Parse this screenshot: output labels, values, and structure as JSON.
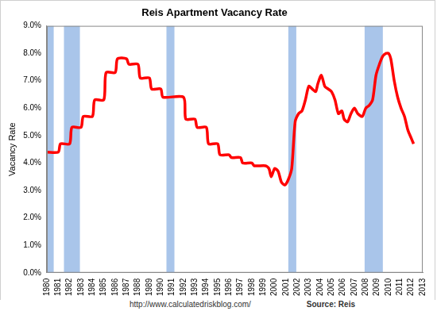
{
  "chart_data": {
    "type": "line",
    "title": "Reis Apartment Vacancy Rate",
    "y_label": "Vacancy Rate",
    "x": [
      1980,
      1981,
      1981.2,
      1982,
      1982.2,
      1983,
      1983.2,
      1984,
      1984.2,
      1985,
      1985.2,
      1986,
      1986.2,
      1987,
      1987.2,
      1988,
      1988.2,
      1989,
      1989.2,
      1990,
      1990.2,
      1992,
      1992.2,
      1993,
      1993.2,
      1994,
      1994.2,
      1995,
      1995.2,
      1996,
      1996.2,
      1997,
      1997.2,
      1998,
      1998.2,
      1999.2,
      1999.5,
      1999.7,
      2000.0,
      2000.3,
      2000.6,
      2000.9,
      2001.2,
      2001.5,
      2001.8,
      2002.1,
      2002.4,
      2002.7,
      2003.0,
      2003.3,
      2003.6,
      2003.8,
      2004.1,
      2004.4,
      2004.7,
      2005.0,
      2005.3,
      2005.6,
      2005.9,
      2006.1,
      2006.4,
      2006.7,
      2007.0,
      2007.3,
      2007.7,
      2008.0,
      2008.3,
      2008.6,
      2008.9,
      2009.2,
      2009.5,
      2009.8,
      2010.0,
      2010.2,
      2010.5,
      2010.8,
      2011.1,
      2011.4,
      2011.7,
      2012.0,
      2012.2
    ],
    "values": [
      4.4,
      4.4,
      4.7,
      4.7,
      5.3,
      5.3,
      5.7,
      5.7,
      6.3,
      6.3,
      7.3,
      7.3,
      7.8,
      7.8,
      7.6,
      7.6,
      7.1,
      7.1,
      6.7,
      6.7,
      6.4,
      6.4,
      5.6,
      5.6,
      5.3,
      5.3,
      4.7,
      4.7,
      4.3,
      4.3,
      4.2,
      4.2,
      4.0,
      4.0,
      3.9,
      3.9,
      3.8,
      3.5,
      3.8,
      3.7,
      3.3,
      3.2,
      3.4,
      3.8,
      5.5,
      5.8,
      5.9,
      6.3,
      6.8,
      6.7,
      6.6,
      6.9,
      7.2,
      6.8,
      6.7,
      6.6,
      6.3,
      5.8,
      5.9,
      5.6,
      5.5,
      5.8,
      6.0,
      5.8,
      5.7,
      6.0,
      6.1,
      6.3,
      7.2,
      7.6,
      7.9,
      8.0,
      8.0,
      7.8,
      7.0,
      6.4,
      6.0,
      5.7,
      5.2,
      4.9,
      4.7
    ],
    "color": "#ff0000",
    "recessions": [
      [
        1980.0,
        1980.6
      ],
      [
        1981.5,
        1982.9
      ],
      [
        1990.5,
        1991.2
      ],
      [
        2001.2,
        2001.9
      ],
      [
        2007.9,
        2009.5
      ]
    ],
    "recession_color": "#a9c5ea",
    "xlim": [
      1980,
      2013
    ],
    "xticks": [
      1980,
      1981,
      1982,
      1983,
      1984,
      1985,
      1986,
      1987,
      1988,
      1989,
      1990,
      1991,
      1992,
      1993,
      1994,
      1995,
      1996,
      1997,
      1998,
      1999,
      2000,
      2001,
      2002,
      2003,
      2004,
      2005,
      2006,
      2007,
      2008,
      2009,
      2010,
      2011,
      2012,
      2013
    ],
    "ylim": [
      0,
      9
    ],
    "yticks": [
      {
        "value": 0,
        "label": "0.0%"
      },
      {
        "value": 1,
        "label": "1.0%"
      },
      {
        "value": 2,
        "label": "2.0%"
      },
      {
        "value": 3,
        "label": "3.0%"
      },
      {
        "value": 4,
        "label": "4.0%"
      },
      {
        "value": 5,
        "label": "5.0%"
      },
      {
        "value": 6,
        "label": "6.0%"
      },
      {
        "value": 7,
        "label": "7.0%"
      },
      {
        "value": 8,
        "label": "8.0%"
      },
      {
        "value": 9,
        "label": "9.0%"
      }
    ],
    "grid": false,
    "annotations": [
      {
        "text": "http://www.calculatedriskblog.com/"
      },
      {
        "text": "Source: Reis"
      }
    ]
  }
}
